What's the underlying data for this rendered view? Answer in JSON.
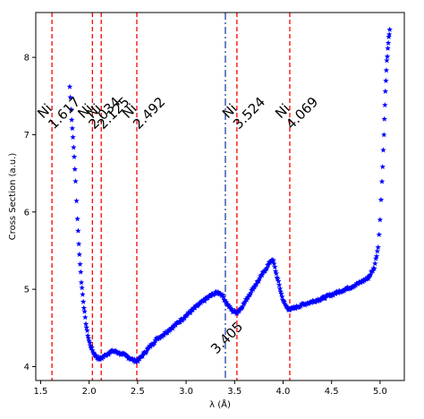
{
  "chart_data": {
    "type": "scatter",
    "title": "",
    "xlabel": "λ (Å)",
    "ylabel": "Cross Section (a.u.)",
    "xlim": [
      1.45,
      5.25
    ],
    "ylim": [
      3.82,
      8.58
    ],
    "xticks": [
      "1.5",
      "2.0",
      "2.5",
      "3.0",
      "3.5",
      "4.0",
      "4.5",
      "5.0"
    ],
    "yticks": [
      "4",
      "5",
      "6",
      "7",
      "8"
    ],
    "grid": false,
    "edge_lines": {
      "color": "#ff0000",
      "style": "dashed",
      "positions": [
        1.617,
        2.034,
        2.125,
        2.492,
        3.524,
        4.069
      ],
      "labels": [
        {
          "element": "Ni",
          "value": "1.617"
        },
        {
          "element": "Ni",
          "value": "2.034"
        },
        {
          "element": "Ni",
          "value": "2.125"
        },
        {
          "element": "Ni",
          "value": "2.492"
        },
        {
          "element": "Ni",
          "value": "3.524"
        },
        {
          "element": "Ni",
          "value": "4.069"
        }
      ]
    },
    "marker_line": {
      "color": "#1f3f9f",
      "style": "dashdot",
      "x": 3.405,
      "label": "3.405"
    },
    "series": [
      {
        "marker": "star",
        "color": "#0000ff",
        "x": [
          1.8,
          1.82,
          1.84,
          1.86,
          1.88,
          1.9,
          1.92,
          1.94,
          1.96,
          1.98,
          2.0,
          2.02,
          2.05,
          2.08,
          2.11,
          2.14,
          2.18,
          2.22,
          2.26,
          2.3,
          2.34,
          2.38,
          2.42,
          2.46,
          2.49,
          2.52,
          2.56,
          2.6,
          2.65,
          2.7,
          2.75,
          2.8,
          2.9,
          3.0,
          3.1,
          3.2,
          3.28,
          3.33,
          3.37,
          3.4,
          3.44,
          3.48,
          3.52,
          3.55,
          3.6,
          3.65,
          3.7,
          3.75,
          3.8,
          3.85,
          3.88,
          3.9,
          3.93,
          3.96,
          3.99,
          4.02,
          4.05,
          4.08,
          4.12,
          4.2,
          4.3,
          4.4,
          4.5,
          4.6,
          4.7,
          4.8,
          4.88,
          4.94,
          4.98,
          5.0,
          5.02,
          5.04,
          5.05,
          5.06,
          5.07,
          5.08,
          5.09,
          5.1
        ],
        "y": [
          7.62,
          7.2,
          6.85,
          6.4,
          5.9,
          5.45,
          5.1,
          4.85,
          4.62,
          4.45,
          4.33,
          4.25,
          4.17,
          4.12,
          4.1,
          4.12,
          4.16,
          4.19,
          4.2,
          4.18,
          4.16,
          4.14,
          4.11,
          4.08,
          4.07,
          4.1,
          4.16,
          4.22,
          4.29,
          4.36,
          4.4,
          4.45,
          4.55,
          4.66,
          4.77,
          4.87,
          4.94,
          4.96,
          4.93,
          4.86,
          4.78,
          4.72,
          4.7,
          4.73,
          4.82,
          4.93,
          5.03,
          5.12,
          5.22,
          5.32,
          5.38,
          5.36,
          5.2,
          5.05,
          4.9,
          4.8,
          4.75,
          4.74,
          4.76,
          4.8,
          4.84,
          4.88,
          4.93,
          4.98,
          5.03,
          5.09,
          5.15,
          5.28,
          5.55,
          5.9,
          6.4,
          7.0,
          7.4,
          7.7,
          7.95,
          8.1,
          8.25,
          8.36
        ]
      }
    ]
  }
}
